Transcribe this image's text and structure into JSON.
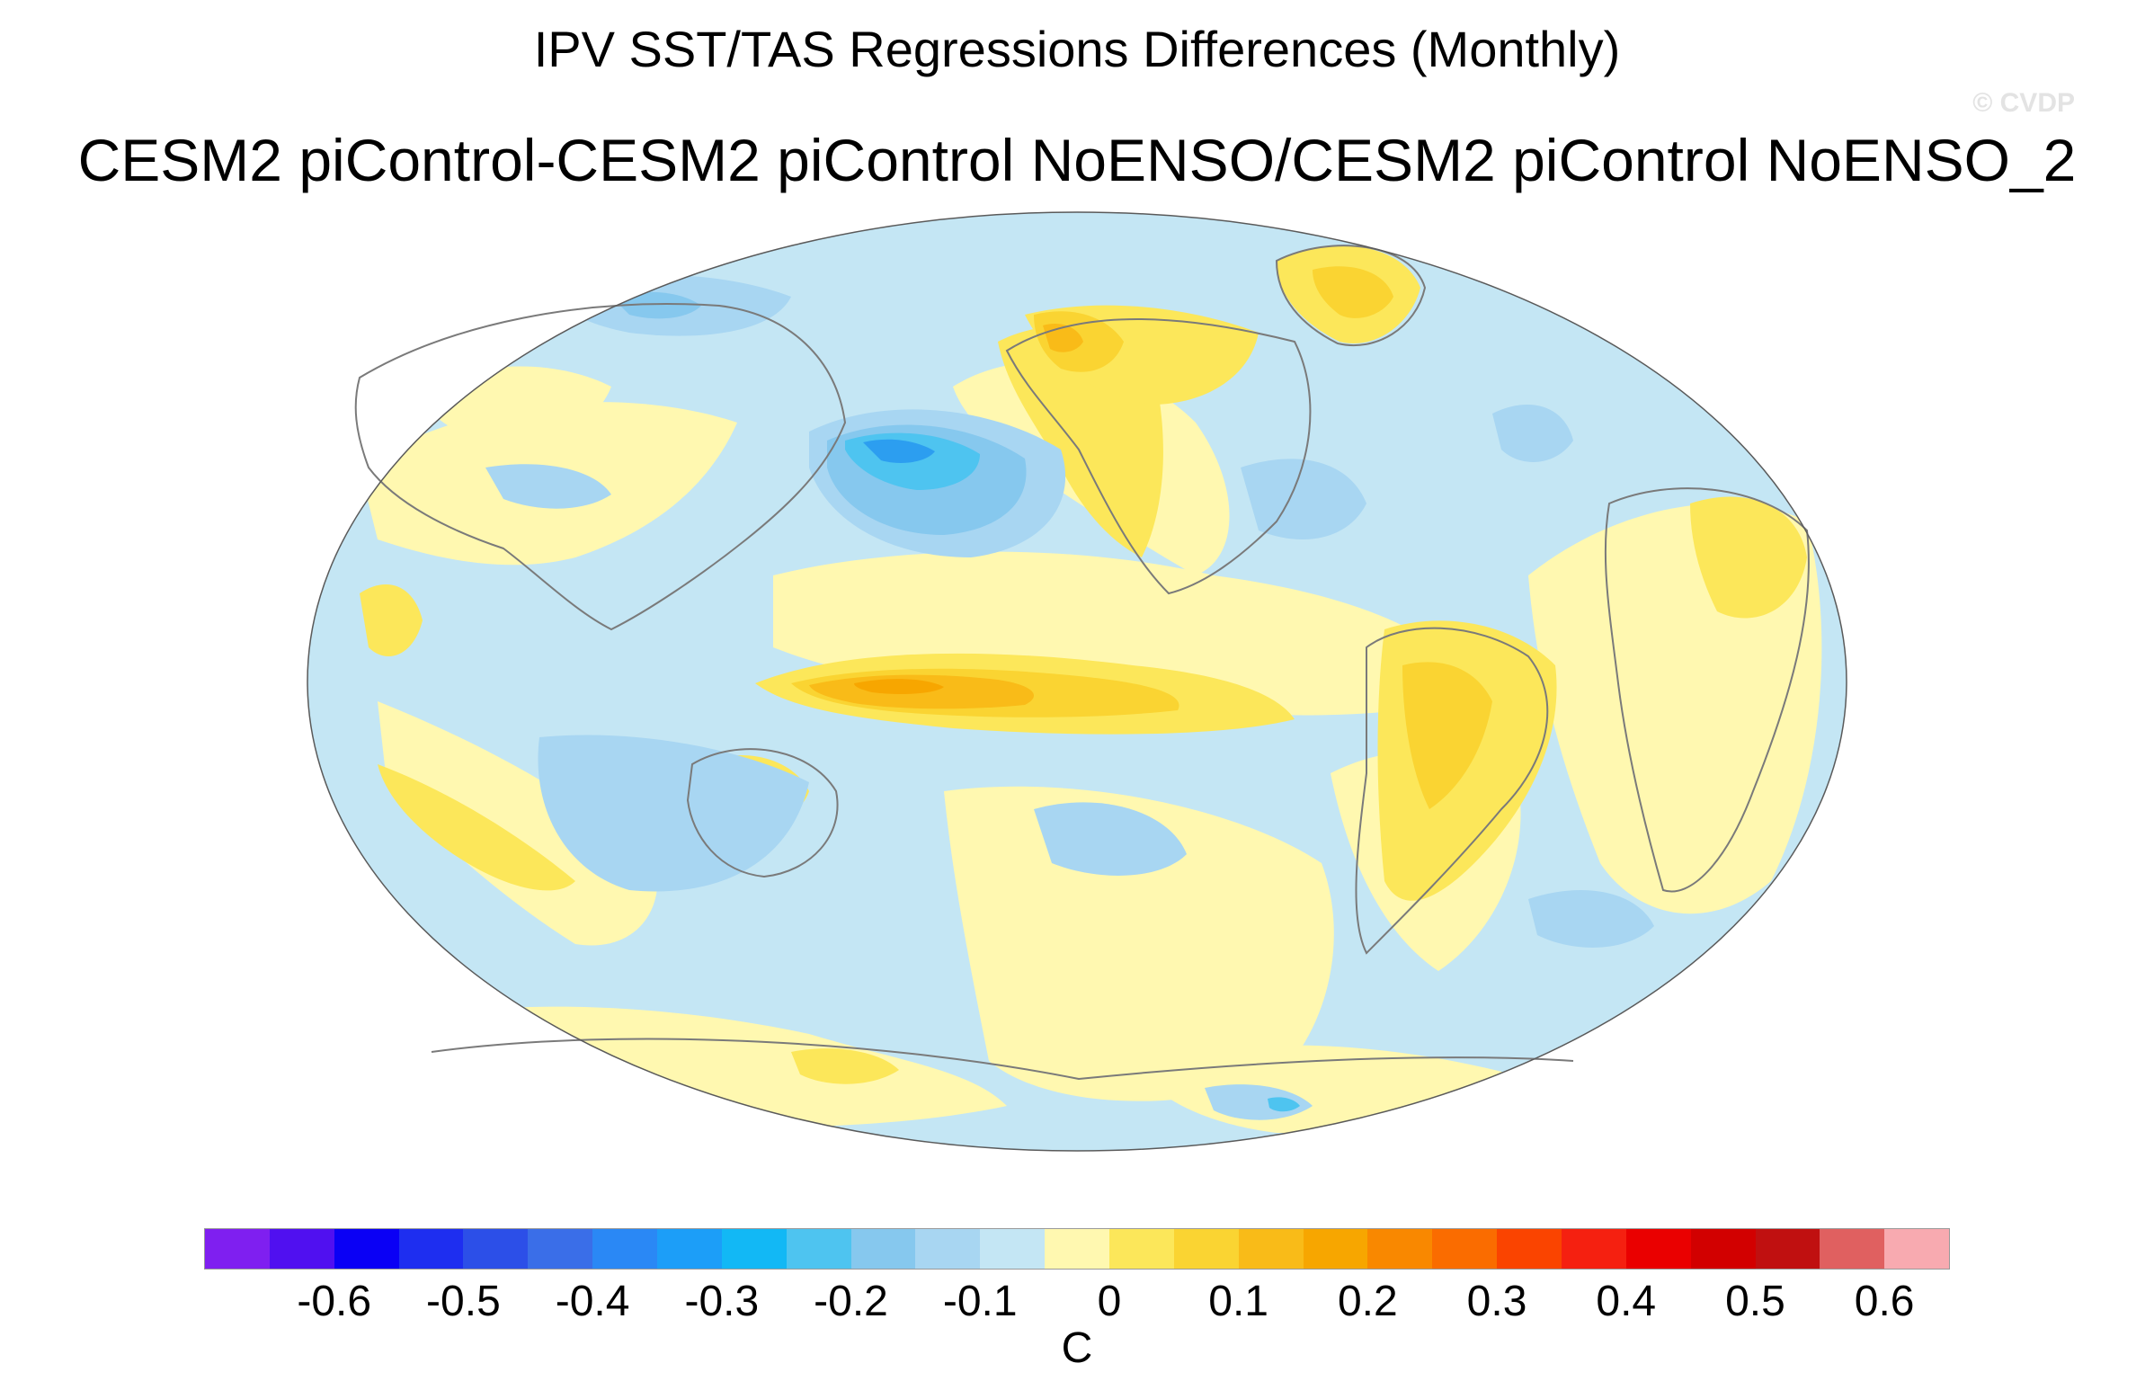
{
  "figure": {
    "title": "IPV SST/TAS Regressions Differences (Monthly)",
    "subtitle": "CESM2 piControl-CESM2 piControl NoENSO/CESM2 piControl NoENSO_2",
    "watermark": "© CVDP"
  },
  "colorbar": {
    "units": "C",
    "colors": [
      "#7f1ff0",
      "#5010f0",
      "#0a00f5",
      "#1e2ef0",
      "#2c4fe8",
      "#3a6ee8",
      "#2a88f5",
      "#1c9ef8",
      "#12b8f5",
      "#4ec4f0",
      "#86c8ee",
      "#a8d6f2",
      "#c4e6f4",
      "#fff8b0",
      "#fce75a",
      "#fad432",
      "#f9bb18",
      "#f7a600",
      "#f98800",
      "#fa6c00",
      "#fa4400",
      "#f52010",
      "#ea0000",
      "#d20000",
      "#c01010",
      "#e06060",
      "#f8aab0"
    ],
    "tick_labels": [
      "-0.6",
      "-0.5",
      "-0.4",
      "-0.3",
      "-0.2",
      "-0.1",
      "0",
      "0.1",
      "0.2",
      "0.3",
      "0.4",
      "0.5",
      "0.6"
    ]
  },
  "map": {
    "projection": "Robinson, Pacific-centered",
    "background_value_color": "#c4e6f4",
    "palette": {
      "n01": "#a8d6f2",
      "n02": "#86c8ee",
      "n03": "#4ec4f0",
      "n04": "#2c9ef0",
      "p00": "#fff8b0",
      "p01": "#fce75a",
      "p02": "#fad432",
      "p03": "#f9bb18",
      "p04": "#f7a600",
      "p05": "#f98800"
    }
  }
}
